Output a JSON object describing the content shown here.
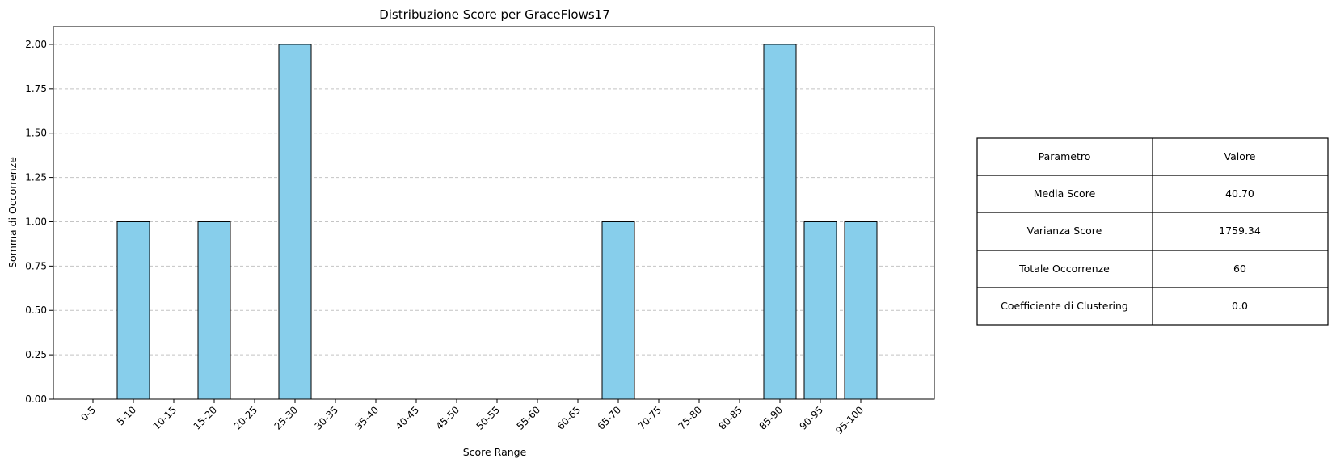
{
  "chart_data": {
    "type": "bar",
    "title": "Distribuzione Score per GraceFlows17",
    "xlabel": "Score Range",
    "ylabel": "Somma di Occorrenze",
    "categories": [
      "0-5",
      "5-10",
      "10-15",
      "15-20",
      "20-25",
      "25-30",
      "30-35",
      "35-40",
      "40-45",
      "45-50",
      "50-55",
      "55-60",
      "60-65",
      "65-70",
      "70-75",
      "75-80",
      "80-85",
      "85-90",
      "90-95",
      "95-100"
    ],
    "values": [
      0,
      1,
      0,
      1,
      0,
      2,
      0,
      0,
      0,
      0,
      0,
      0,
      0,
      1,
      0,
      0,
      0,
      2,
      1,
      1
    ],
    "ylim": [
      0,
      2.1
    ],
    "yticks": [
      "0.00",
      "0.25",
      "0.50",
      "0.75",
      "1.00",
      "1.25",
      "1.50",
      "1.75",
      "2.00"
    ],
    "grid": "y-dashed",
    "colors": {
      "bar_fill": "#87ceeb",
      "bar_edge": "#000000",
      "grid": "#c4c4c4"
    }
  },
  "stats_table": {
    "header": {
      "param": "Parametro",
      "value": "Valore"
    },
    "rows": [
      {
        "param": "Media Score",
        "value": "40.70"
      },
      {
        "param": "Varianza Score",
        "value": "1759.34"
      },
      {
        "param": "Totale Occorrenze",
        "value": "60"
      },
      {
        "param": "Coefficiente di Clustering",
        "value": "0.0"
      }
    ]
  }
}
